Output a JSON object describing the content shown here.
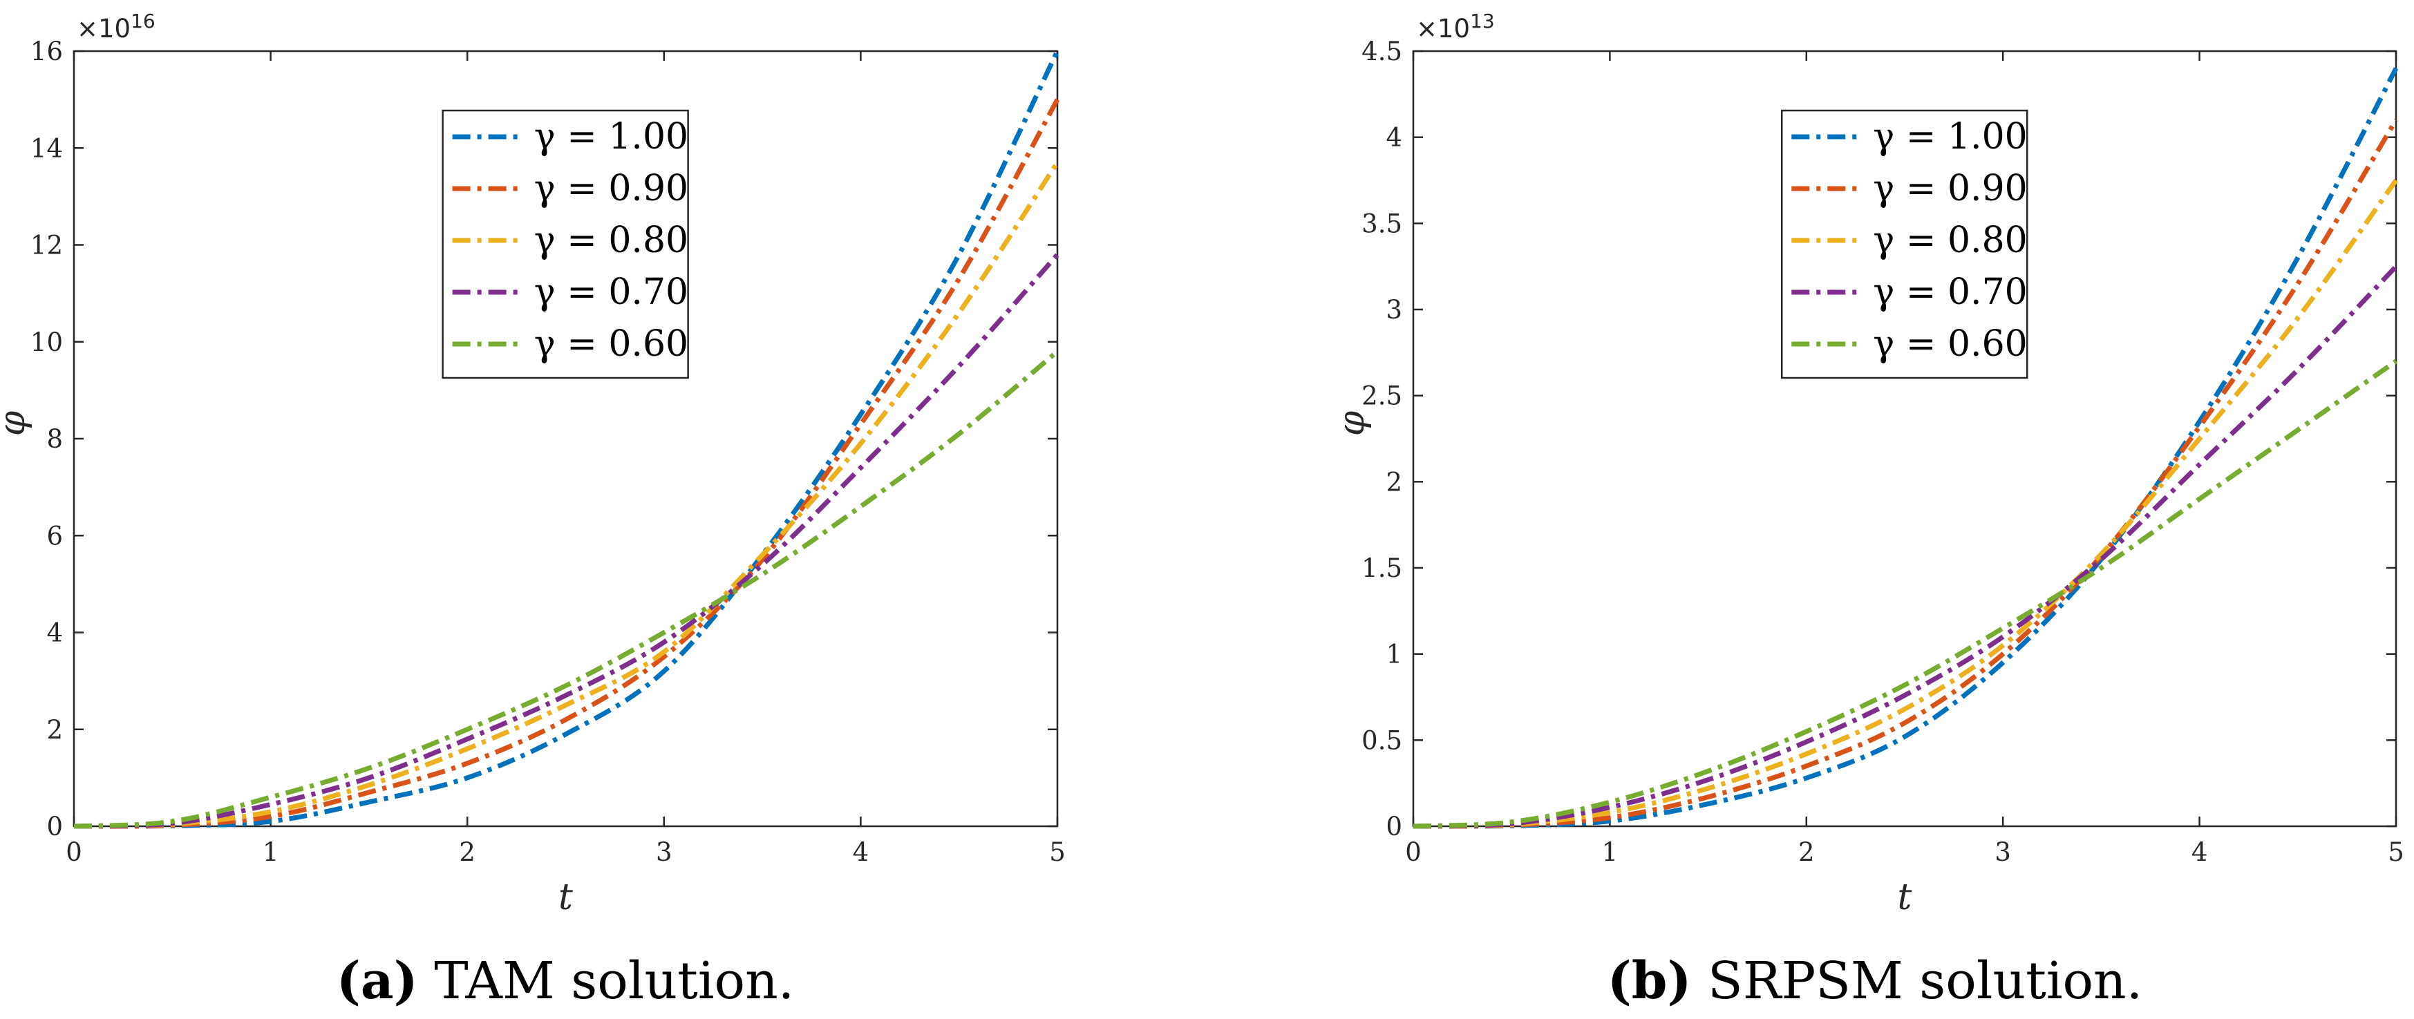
{
  "chart_data": [
    {
      "type": "line",
      "panel_label": "(a)",
      "caption_text": "TAM solution.",
      "xlabel": "t",
      "ylabel": "φ",
      "y_exponent": "×10",
      "y_exponent_power": "16",
      "xlim": [
        0,
        5
      ],
      "ylim": [
        0,
        16
      ],
      "xticks": [
        "0",
        "1",
        "2",
        "3",
        "4",
        "5"
      ],
      "yticks": [
        "0",
        "2",
        "4",
        "6",
        "8",
        "10",
        "12",
        "14",
        "16"
      ],
      "legend_position": "top-center",
      "x": [
        0,
        0.5,
        1,
        1.5,
        2,
        2.5,
        3,
        3.5,
        4,
        4.5,
        5
      ],
      "series": [
        {
          "name": "γ = 1.00",
          "color": "#0072BD",
          "values": [
            0,
            0.01,
            0.1,
            0.5,
            1.0,
            1.9,
            3.2,
            5.6,
            8.5,
            11.8,
            16.0
          ]
        },
        {
          "name": "γ = 0.90",
          "color": "#D95319",
          "values": [
            0,
            0.02,
            0.2,
            0.7,
            1.3,
            2.2,
            3.5,
            5.5,
            8.3,
            11.3,
            15.0
          ]
        },
        {
          "name": "γ = 0.80",
          "color": "#EDB120",
          "values": [
            0,
            0.04,
            0.3,
            0.85,
            1.6,
            2.5,
            3.6,
            5.6,
            7.9,
            10.6,
            13.7
          ]
        },
        {
          "name": "γ = 0.70",
          "color": "#7E2F8E",
          "values": [
            0,
            0.06,
            0.45,
            1.0,
            1.8,
            2.7,
            3.8,
            5.4,
            7.4,
            9.5,
            11.8
          ]
        },
        {
          "name": "γ = 0.60",
          "color": "#77AC30",
          "values": [
            0,
            0.1,
            0.6,
            1.2,
            2.0,
            2.9,
            4.0,
            5.2,
            6.6,
            8.1,
            9.8
          ]
        }
      ]
    },
    {
      "type": "line",
      "panel_label": "(b)",
      "caption_text": "SRPSM solution.",
      "xlabel": "t",
      "ylabel": "φ",
      "y_exponent": "×10",
      "y_exponent_power": "13",
      "xlim": [
        0,
        5
      ],
      "ylim": [
        0,
        4.5
      ],
      "xticks": [
        "0",
        "1",
        "2",
        "3",
        "4",
        "5"
      ],
      "yticks": [
        "0",
        "0.5",
        "1",
        "1.5",
        "2",
        "2.5",
        "3",
        "3.5",
        "4",
        "4.5"
      ],
      "legend_position": "top-center",
      "x": [
        0,
        0.5,
        1,
        1.5,
        2,
        2.5,
        3,
        3.5,
        4,
        4.5,
        5
      ],
      "series": [
        {
          "name": "γ = 1.00",
          "color": "#0072BD",
          "values": [
            0,
            0.003,
            0.03,
            0.13,
            0.28,
            0.52,
            0.95,
            1.55,
            2.35,
            3.3,
            4.4
          ]
        },
        {
          "name": "γ = 0.90",
          "color": "#D95319",
          "values": [
            0,
            0.006,
            0.05,
            0.17,
            0.35,
            0.6,
            1.0,
            1.57,
            2.32,
            3.15,
            4.1
          ]
        },
        {
          "name": "γ = 0.80",
          "color": "#EDB120",
          "values": [
            0,
            0.01,
            0.08,
            0.22,
            0.42,
            0.68,
            1.05,
            1.58,
            2.25,
            2.95,
            3.75
          ]
        },
        {
          "name": "γ = 0.70",
          "color": "#7E2F8E",
          "values": [
            0,
            0.015,
            0.11,
            0.27,
            0.49,
            0.76,
            1.1,
            1.55,
            2.1,
            2.65,
            3.25
          ]
        },
        {
          "name": "γ = 0.60",
          "color": "#77AC30",
          "values": [
            0,
            0.025,
            0.14,
            0.32,
            0.55,
            0.82,
            1.15,
            1.5,
            1.9,
            2.3,
            2.7
          ]
        }
      ]
    }
  ]
}
